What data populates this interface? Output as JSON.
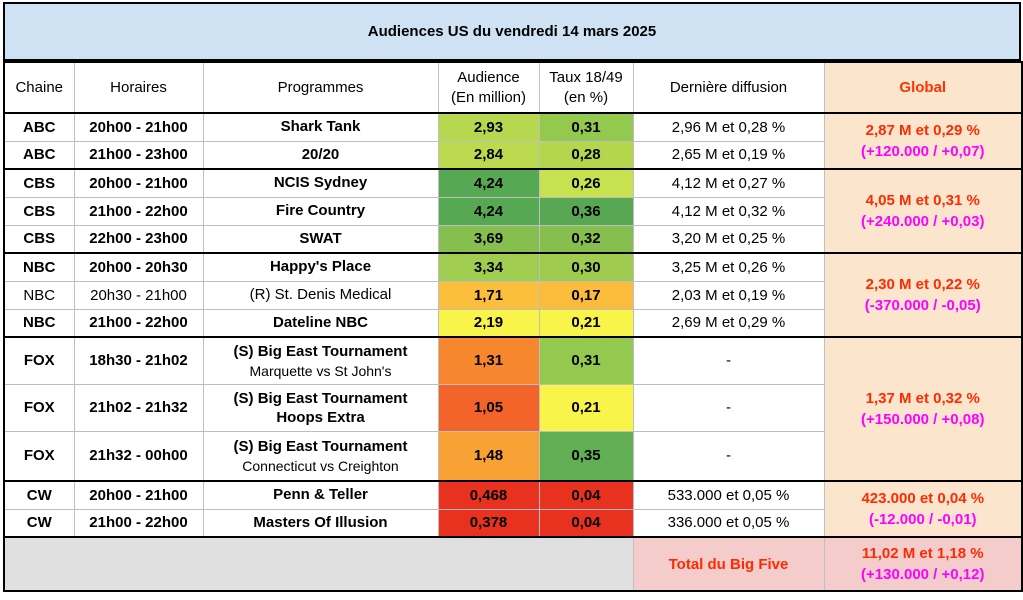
{
  "title": "Audiences US du vendredi 14 mars 2025",
  "headers": {
    "chaine": "Chaine",
    "horaires": "Horaires",
    "programmes": "Programmes",
    "audience_l1": "Audience",
    "audience_l2": "(En million)",
    "taux_l1": "Taux 18/49",
    "taux_l2": "(en %)",
    "derniere": "Dernière diffusion",
    "global": "Global"
  },
  "rows": [
    {
      "chaine": "ABC",
      "horaires": "20h00 - 21h00",
      "programme": "Shark Tank",
      "sub": "",
      "audience": "2,93",
      "taux": "0,31",
      "derniere": "2,96 M et 0,28 %",
      "aud_color": "#b5d84f",
      "taux_color": "#92c94e",
      "bold": true
    },
    {
      "chaine": "ABC",
      "horaires": "21h00 - 23h00",
      "programme": "20/20",
      "sub": "",
      "audience": "2,84",
      "taux": "0,28",
      "derniere": "2,65 M et 0,19 %",
      "aud_color": "#bcda4f",
      "taux_color": "#b3d64d",
      "bold": true
    },
    {
      "chaine": "CBS",
      "horaires": "20h00 - 21h00",
      "programme": "NCIS Sydney",
      "sub": "",
      "audience": "4,24",
      "taux": "0,26",
      "derniere": "4,12 M et 0,27 %",
      "aud_color": "#57a853",
      "taux_color": "#c8e14e",
      "bold": true
    },
    {
      "chaine": "CBS",
      "horaires": "21h00 - 22h00",
      "programme": "Fire Country",
      "sub": "",
      "audience": "4,24",
      "taux": "0,36",
      "derniere": "4,12 M et 0,32 %",
      "aud_color": "#57a853",
      "taux_color": "#58a853",
      "bold": true
    },
    {
      "chaine": "CBS",
      "horaires": "22h00 - 23h00",
      "programme": "SWAT",
      "sub": "",
      "audience": "3,69",
      "taux": "0,32",
      "derniere": "3,20 M et 0,25 %",
      "aud_color": "#86bf50",
      "taux_color": "#86bf50",
      "bold": true
    },
    {
      "chaine": "NBC",
      "horaires": "20h00 - 20h30",
      "programme": "Happy's Place",
      "sub": "",
      "audience": "3,34",
      "taux": "0,30",
      "derniere": "3,25 M et 0,26 %",
      "aud_color": "#a0cc50",
      "taux_color": "#9fcb4f",
      "bold": true
    },
    {
      "chaine": "NBC",
      "horaires": "20h30 - 21h00",
      "programme": "(R) St. Denis Medical",
      "sub": "",
      "audience": "1,71",
      "taux": "0,17",
      "derniere": "2,03 M et 0,19 %",
      "aud_color": "#fbbf3c",
      "taux_color": "#fbbc3b",
      "bold": false
    },
    {
      "chaine": "NBC",
      "horaires": "21h00 - 22h00",
      "programme": "Dateline NBC",
      "sub": "",
      "audience": "2,19",
      "taux": "0,21",
      "derniere": "2,69 M et 0,29 %",
      "aud_color": "#f9f44a",
      "taux_color": "#f9f44a",
      "bold": true
    },
    {
      "chaine": "FOX",
      "horaires": "18h30 - 21h02",
      "programme": "(S) Big East Tournament",
      "sub": "Marquette vs St John's",
      "audience": "1,31",
      "taux": "0,31",
      "derniere": "-",
      "aud_color": "#f6872e",
      "taux_color": "#92c94e",
      "bold": true
    },
    {
      "chaine": "FOX",
      "horaires": "21h02 - 21h32",
      "programme": "(S) Big East Tournament",
      "sub": "Hoops Extra",
      "audience": "1,05",
      "taux": "0,21",
      "derniere": "-",
      "aud_color": "#f2642a",
      "taux_color": "#f9f44a",
      "bold": true
    },
    {
      "chaine": "FOX",
      "horaires": "21h32 - 00h00",
      "programme": "(S) Big East Tournament",
      "sub": "Connecticut vs Creighton",
      "audience": "1,48",
      "taux": "0,35",
      "derniere": "-",
      "aud_color": "#f8a236",
      "taux_color": "#62ae52",
      "bold": true
    },
    {
      "chaine": "CW",
      "horaires": "20h00 - 21h00",
      "programme": "Penn & Teller",
      "sub": "",
      "audience": "0,468",
      "taux": "0,04",
      "derniere": "533.000 et 0,05 %",
      "aud_color": "#e8321f",
      "taux_color": "#e8321f",
      "bold": true
    },
    {
      "chaine": "CW",
      "horaires": "21h00 - 22h00",
      "programme": "Masters Of Illusion",
      "sub": "",
      "audience": "0,378",
      "taux": "0,04",
      "derniere": "336.000 et 0,05 %",
      "aud_color": "#e8321f",
      "taux_color": "#e8321f",
      "bold": true
    }
  ],
  "globals": [
    {
      "network": "ABC",
      "line1": "2,87 M et 0,29 %",
      "line2": "(+120.000 / +0,07)"
    },
    {
      "network": "CBS",
      "line1": "4,05 M et 0,31 %",
      "line2": "(+240.000 / +0,03)"
    },
    {
      "network": "NBC",
      "line1": "2,30 M et 0,22 %",
      "line2": "(-370.000 / -0,05)"
    },
    {
      "network": "FOX",
      "line1": "1,37 M et 0,32 %",
      "line2": "(+150.000 / +0,08)"
    },
    {
      "network": "CW",
      "line1": "423.000 et 0,04 %",
      "line2": "(-12.000 / -0,01)"
    }
  ],
  "footer": {
    "label": "Total du Big Five",
    "line1": "11,02 M et 1,18 %",
    "line2": "(+130.000 / +0,12)"
  },
  "colors": {
    "title_bg": "#cfe2f3",
    "global_bg": "#fce5cd",
    "footer_bg": "#f4cccc",
    "global_line1": "#ff2a00",
    "global_line2": "#ff00ff"
  }
}
